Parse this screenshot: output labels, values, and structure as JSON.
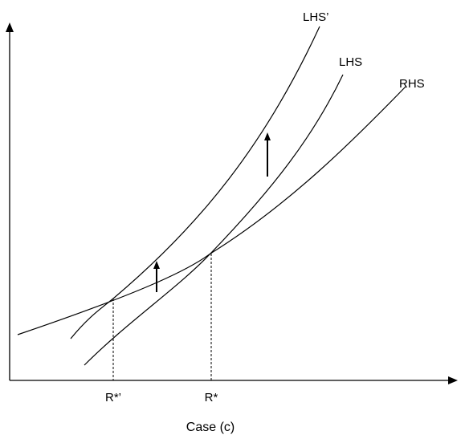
{
  "curves": {
    "lhs_prime": "LHS’",
    "lhs": "LHS",
    "rhs": "RHS"
  },
  "axis": {
    "r_star_prime": "R*’",
    "r_star": "R*"
  },
  "caption": "Case (c)"
}
